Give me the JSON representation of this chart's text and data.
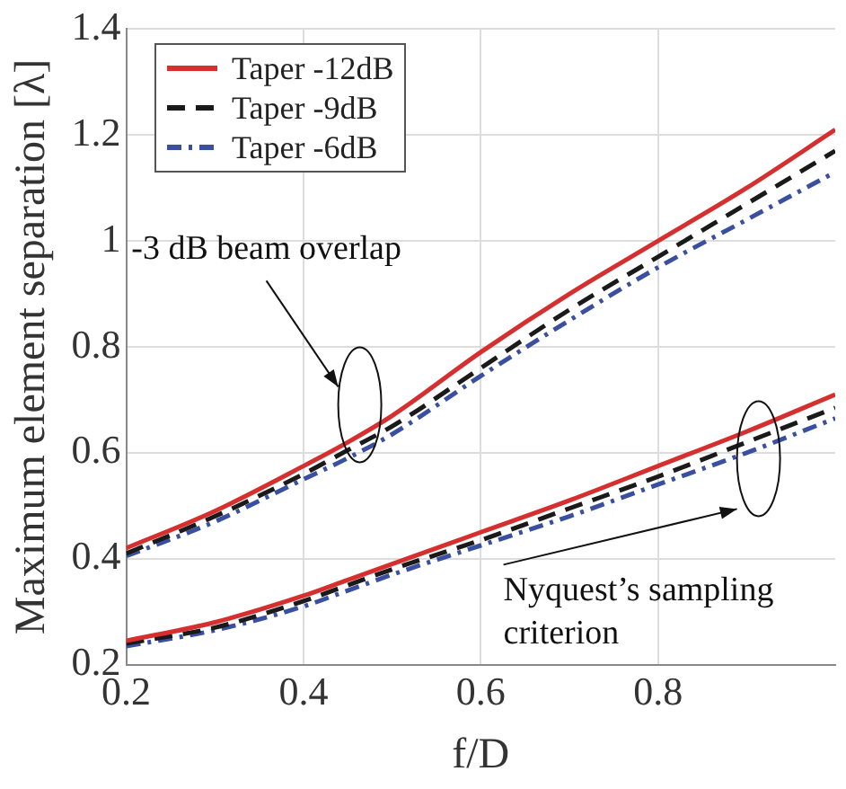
{
  "chart_data": {
    "type": "line",
    "xlabel": "f/D",
    "ylabel": "Maximum element separation [λ]",
    "x": [
      0.2,
      0.3,
      0.4,
      0.45,
      0.5,
      0.6,
      0.7,
      0.8,
      0.9,
      1.0
    ],
    "series": [
      {
        "name": "Taper -12dB",
        "color": "#d62f2f",
        "line_style": "solid",
        "values": [
          0.42,
          0.49,
          0.575,
          0.62,
          0.67,
          0.79,
          0.9,
          1.0,
          1.1,
          1.21
        ]
      },
      {
        "name": "Taper -9dB",
        "color": "#1a1a1a",
        "line_style": "dashed",
        "values": [
          0.41,
          0.48,
          0.56,
          0.605,
          0.65,
          0.76,
          0.87,
          0.97,
          1.07,
          1.17
        ]
      },
      {
        "name": "Taper -6dB",
        "color": "#3a4fa0",
        "line_style": "dashdot",
        "values": [
          0.405,
          0.47,
          0.55,
          0.59,
          0.635,
          0.745,
          0.85,
          0.95,
          1.04,
          1.13
        ]
      },
      {
        "color": "#d62f2f",
        "line_style": "solid",
        "values": [
          0.245,
          0.28,
          0.33,
          0.36,
          0.39,
          0.45,
          0.51,
          0.575,
          0.64,
          0.71
        ]
      },
      {
        "color": "#1a1a1a",
        "line_style": "dashed",
        "values": [
          0.24,
          0.27,
          0.32,
          0.35,
          0.38,
          0.435,
          0.495,
          0.555,
          0.62,
          0.685
        ]
      },
      {
        "color": "#3a4fa0",
        "line_style": "dashdot",
        "values": [
          0.235,
          0.265,
          0.31,
          0.34,
          0.37,
          0.425,
          0.48,
          0.54,
          0.6,
          0.665
        ]
      }
    ],
    "xlim": [
      0.2,
      1.0
    ],
    "xticks": [
      0.2,
      0.4,
      0.6,
      0.8
    ],
    "ylim": [
      0.2,
      1.4
    ],
    "yticks": [
      0.2,
      0.4,
      0.6,
      0.8,
      1,
      1.2,
      1.4
    ],
    "grid": true,
    "legend": "top left",
    "marker": "none",
    "annotations": [
      "-3 dB beam overlap",
      "Nyquest’s sampling criterion"
    ]
  }
}
